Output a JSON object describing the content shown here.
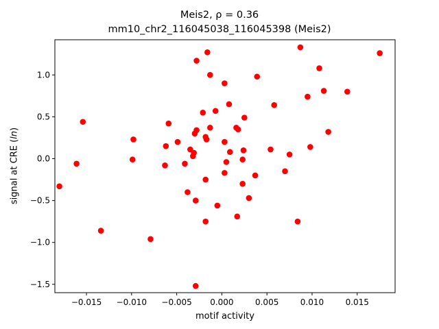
{
  "chart_data": {
    "type": "scatter",
    "title": "Meis2, ρ = 0.36",
    "subtitle": "mm10_chr2_116045038_116045398 (Meis2)",
    "xlabel": "motif activity",
    "ylabel": "signal at CRE (ln)",
    "xlim": [
      -0.0185,
      0.0192
    ],
    "ylim": [
      -1.6,
      1.42
    ],
    "xticks": [
      -0.015,
      -0.01,
      -0.005,
      0.0,
      0.005,
      0.01,
      0.015
    ],
    "xtick_labels": [
      "−0.015",
      "−0.010",
      "−0.005",
      "0.000",
      "0.005",
      "0.010",
      "0.015"
    ],
    "yticks": [
      -1.5,
      -1.0,
      -0.5,
      0.0,
      0.5,
      1.0
    ],
    "ytick_labels": [
      "−1.5",
      "−1.0",
      "−0.5",
      "0.0",
      "0.5",
      "1.0"
    ],
    "grid": false,
    "marker_color": "#ff0000",
    "points": [
      {
        "x": -0.018,
        "y": -0.33
      },
      {
        "x": -0.0161,
        "y": -0.06
      },
      {
        "x": -0.0154,
        "y": 0.44
      },
      {
        "x": -0.0134,
        "y": -0.86
      },
      {
        "x": -0.0098,
        "y": 0.23
      },
      {
        "x": -0.0099,
        "y": -0.01
      },
      {
        "x": -0.0079,
        "y": -0.96
      },
      {
        "x": -0.0063,
        "y": -0.08
      },
      {
        "x": -0.0062,
        "y": 0.15
      },
      {
        "x": -0.0059,
        "y": 0.42
      },
      {
        "x": -0.0049,
        "y": 0.2
      },
      {
        "x": -0.0041,
        "y": -0.06
      },
      {
        "x": -0.0038,
        "y": -0.4
      },
      {
        "x": -0.0035,
        "y": 0.11
      },
      {
        "x": -0.0032,
        "y": 0.03
      },
      {
        "x": -0.0031,
        "y": 0.07
      },
      {
        "x": -0.003,
        "y": 0.3
      },
      {
        "x": -0.0028,
        "y": 0.34
      },
      {
        "x": -0.0029,
        "y": -0.5
      },
      {
        "x": -0.0028,
        "y": 1.17
      },
      {
        "x": -0.0029,
        "y": -1.52
      },
      {
        "x": -0.0021,
        "y": 0.55
      },
      {
        "x": -0.0018,
        "y": 0.26
      },
      {
        "x": -0.0017,
        "y": 0.23
      },
      {
        "x": -0.0018,
        "y": -0.25
      },
      {
        "x": -0.0018,
        "y": -0.75
      },
      {
        "x": -0.0016,
        "y": 1.27
      },
      {
        "x": -0.0013,
        "y": 1.0
      },
      {
        "x": -0.0013,
        "y": 0.37
      },
      {
        "x": -0.0007,
        "y": 0.57
      },
      {
        "x": -0.0005,
        "y": -0.56
      },
      {
        "x": 0.0003,
        "y": 0.9
      },
      {
        "x": 0.0003,
        "y": 0.2
      },
      {
        "x": 0.0003,
        "y": -0.17
      },
      {
        "x": 0.0005,
        "y": -0.04
      },
      {
        "x": 0.0008,
        "y": 0.65
      },
      {
        "x": 0.0009,
        "y": 0.08
      },
      {
        "x": 0.0016,
        "y": 0.37
      },
      {
        "x": 0.0018,
        "y": 0.35
      },
      {
        "x": 0.0017,
        "y": -0.69
      },
      {
        "x": 0.0023,
        "y": -0.3
      },
      {
        "x": 0.0023,
        "y": -0.01
      },
      {
        "x": 0.0024,
        "y": 0.1
      },
      {
        "x": 0.0025,
        "y": 0.49
      },
      {
        "x": 0.003,
        "y": -0.47
      },
      {
        "x": 0.0037,
        "y": -0.2
      },
      {
        "x": 0.0039,
        "y": 0.98
      },
      {
        "x": 0.0054,
        "y": 0.11
      },
      {
        "x": 0.0058,
        "y": 0.64
      },
      {
        "x": 0.007,
        "y": -0.15
      },
      {
        "x": 0.0075,
        "y": 0.05
      },
      {
        "x": 0.0084,
        "y": -0.75
      },
      {
        "x": 0.0087,
        "y": 1.33
      },
      {
        "x": 0.0095,
        "y": 0.74
      },
      {
        "x": 0.0098,
        "y": 0.14
      },
      {
        "x": 0.0108,
        "y": 1.08
      },
      {
        "x": 0.0113,
        "y": 0.81
      },
      {
        "x": 0.0118,
        "y": 0.32
      },
      {
        "x": 0.0139,
        "y": 0.8
      },
      {
        "x": 0.0175,
        "y": 1.26
      }
    ]
  }
}
